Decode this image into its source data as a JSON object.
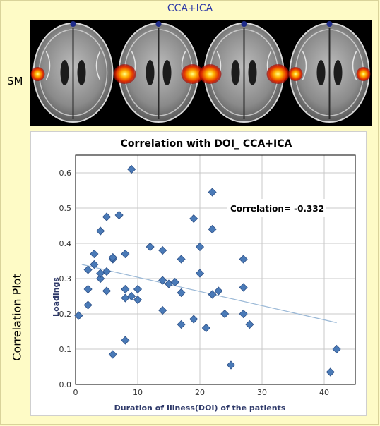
{
  "figure": {
    "top_title": "CCA+ICA",
    "row_label": "SM",
    "side_label": "Correlation Plot"
  },
  "brain_slices": [
    {
      "blob": "left-small"
    },
    {
      "blob": "bilateral"
    },
    {
      "blob": "bilateral"
    },
    {
      "blob": "bilateral-small"
    }
  ],
  "chart_data": {
    "type": "scatter",
    "title": "Correlation with DOI_ CCA+ICA",
    "xlabel": "Duration of Illness(DOI) of the patients",
    "ylabel": "Loadings",
    "annotation": "Correlation= -0.332",
    "xlim": [
      0,
      45
    ],
    "ylim": [
      0,
      0.65
    ],
    "xticks": [
      0,
      10,
      20,
      30,
      40
    ],
    "yticks": [
      0.0,
      0.1,
      0.2,
      0.3,
      0.4,
      0.5,
      0.6
    ],
    "grid": true,
    "marker_color": "#4a7ab7",
    "trend_color": "#9ab8d6",
    "trendline": {
      "x": [
        1,
        42
      ],
      "y": [
        0.34,
        0.175
      ]
    },
    "points": [
      {
        "x": 0.5,
        "y": 0.195
      },
      {
        "x": 2,
        "y": 0.225
      },
      {
        "x": 2,
        "y": 0.27
      },
      {
        "x": 2,
        "y": 0.325
      },
      {
        "x": 3,
        "y": 0.34
      },
      {
        "x": 3,
        "y": 0.37
      },
      {
        "x": 4,
        "y": 0.3
      },
      {
        "x": 4,
        "y": 0.315
      },
      {
        "x": 4,
        "y": 0.435
      },
      {
        "x": 5,
        "y": 0.265
      },
      {
        "x": 5,
        "y": 0.32
      },
      {
        "x": 5,
        "y": 0.475
      },
      {
        "x": 6,
        "y": 0.085
      },
      {
        "x": 6,
        "y": 0.355
      },
      {
        "x": 6,
        "y": 0.36
      },
      {
        "x": 7,
        "y": 0.48
      },
      {
        "x": 8,
        "y": 0.125
      },
      {
        "x": 8,
        "y": 0.245
      },
      {
        "x": 8,
        "y": 0.27
      },
      {
        "x": 8,
        "y": 0.37
      },
      {
        "x": 9,
        "y": 0.25
      },
      {
        "x": 9,
        "y": 0.61
      },
      {
        "x": 10,
        "y": 0.24
      },
      {
        "x": 10,
        "y": 0.27
      },
      {
        "x": 12,
        "y": 0.39
      },
      {
        "x": 14,
        "y": 0.21
      },
      {
        "x": 14,
        "y": 0.295
      },
      {
        "x": 14,
        "y": 0.38
      },
      {
        "x": 15,
        "y": 0.285
      },
      {
        "x": 16,
        "y": 0.29
      },
      {
        "x": 17,
        "y": 0.17
      },
      {
        "x": 17,
        "y": 0.26
      },
      {
        "x": 17,
        "y": 0.355
      },
      {
        "x": 19,
        "y": 0.185
      },
      {
        "x": 19,
        "y": 0.47
      },
      {
        "x": 20,
        "y": 0.315
      },
      {
        "x": 20,
        "y": 0.39
      },
      {
        "x": 21,
        "y": 0.16
      },
      {
        "x": 22,
        "y": 0.255
      },
      {
        "x": 22,
        "y": 0.44
      },
      {
        "x": 22,
        "y": 0.545
      },
      {
        "x": 23,
        "y": 0.265
      },
      {
        "x": 24,
        "y": 0.2
      },
      {
        "x": 25,
        "y": 0.055
      },
      {
        "x": 27,
        "y": 0.2
      },
      {
        "x": 27,
        "y": 0.275
      },
      {
        "x": 27,
        "y": 0.355
      },
      {
        "x": 28,
        "y": 0.17
      },
      {
        "x": 41,
        "y": 0.035
      },
      {
        "x": 42,
        "y": 0.1
      }
    ]
  }
}
